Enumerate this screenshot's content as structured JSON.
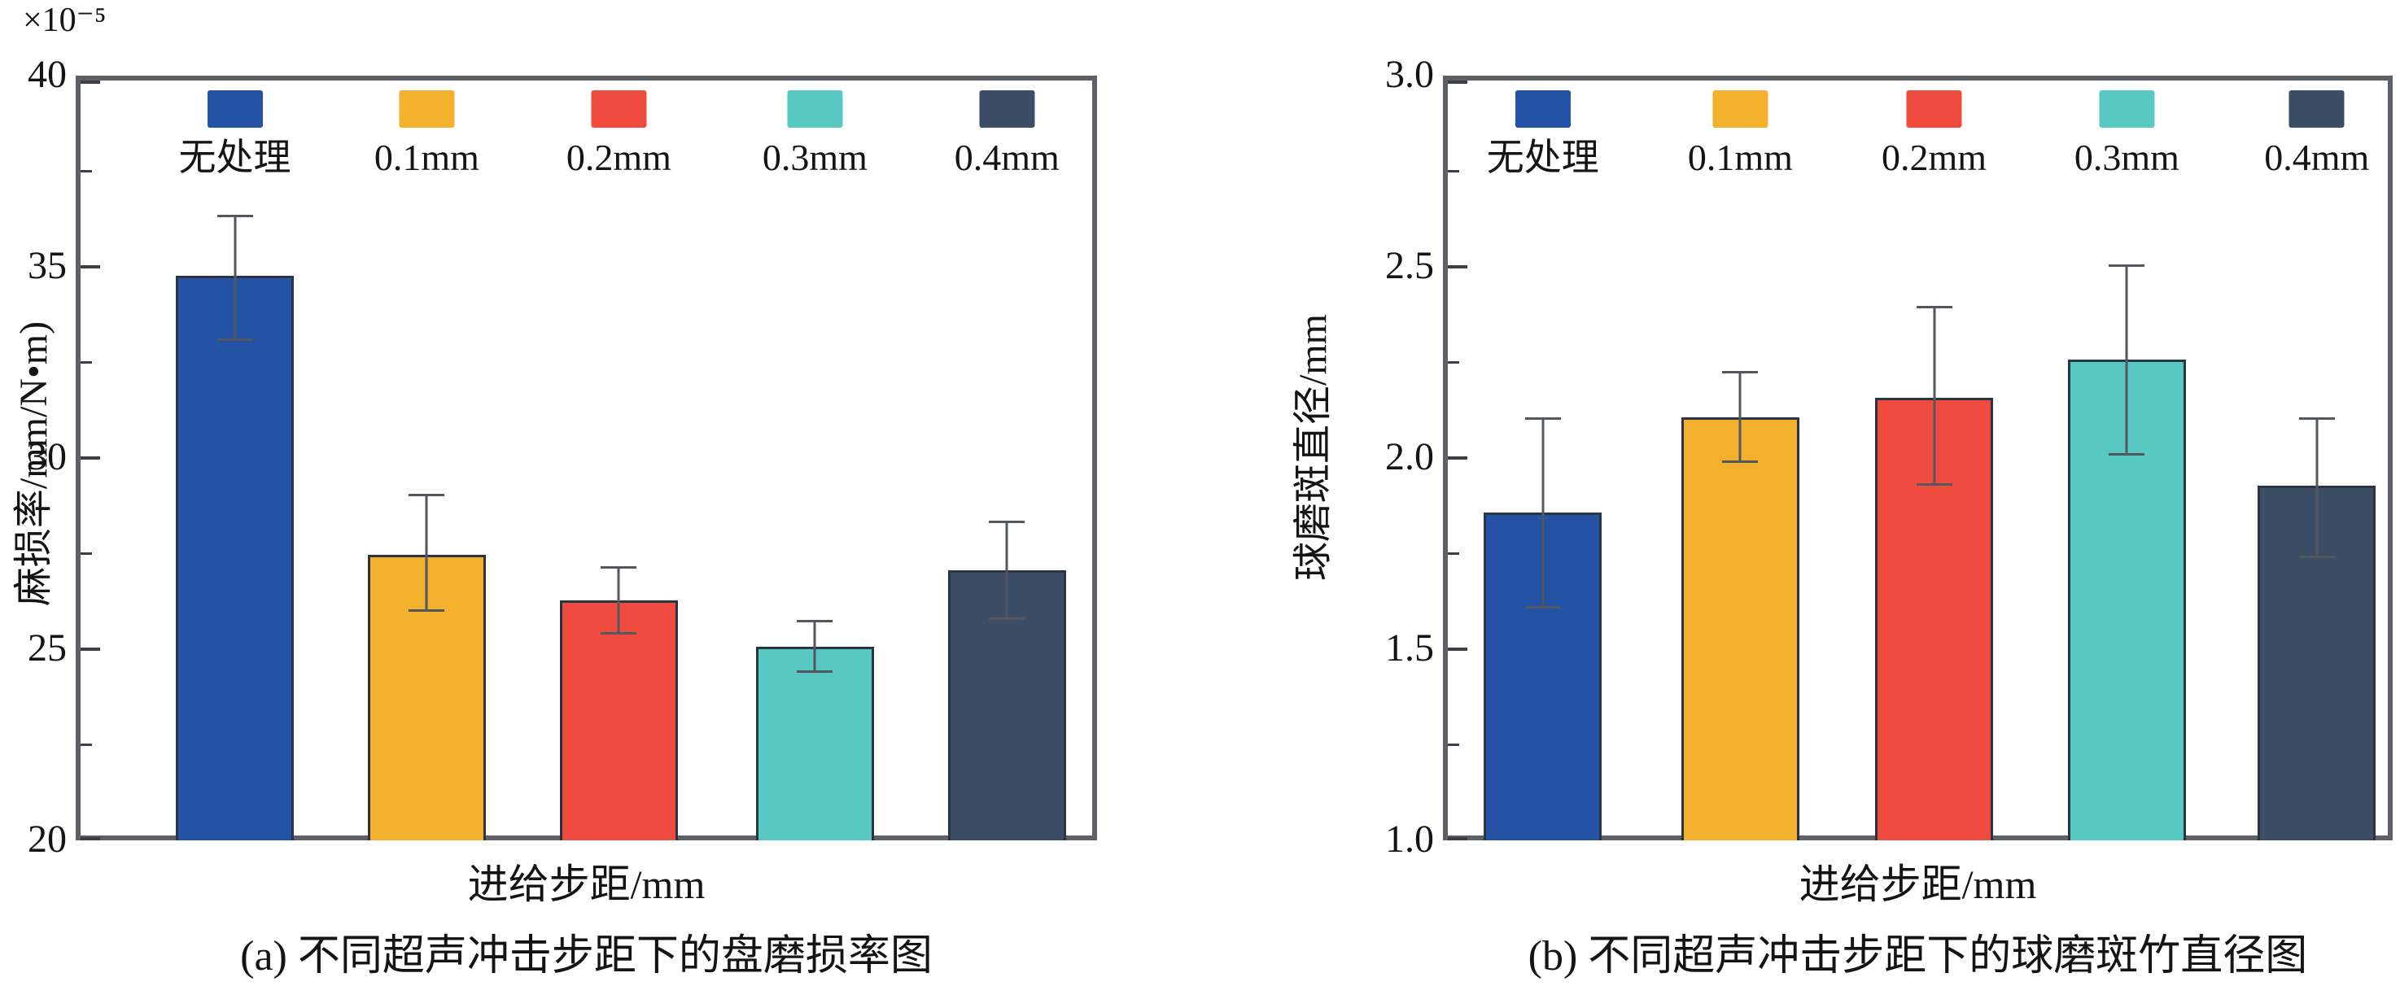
{
  "figure": {
    "background": "#ffffff",
    "frame_color": "#5d6066",
    "error_bar_color": "#53575e",
    "bar_outline_color": "#2b3442"
  },
  "legend": {
    "items": [
      {
        "label": "无处理",
        "color": "#2452a5"
      },
      {
        "label": "0.1mm",
        "color": "#f2b02d"
      },
      {
        "label": "0.2mm",
        "color": "#ef4c3f"
      },
      {
        "label": "0.3mm",
        "color": "#58c9c2"
      },
      {
        "label": "0.4mm",
        "color": "#3c4d66"
      }
    ]
  },
  "chart_data": [
    {
      "type": "bar",
      "caption": "(a) 不同超声冲击步距下的盘磨损率图",
      "xlabel": "进给步距/mm",
      "ylabel": "麻损率/mm/N•m)",
      "scale_note": "×10⁻⁵",
      "categories": [
        "无处理",
        "0.1mm",
        "0.2mm",
        "0.3mm",
        "0.4mm"
      ],
      "values": [
        34.9,
        27.6,
        26.4,
        25.2,
        27.2
      ],
      "error_low": [
        33.2,
        26.1,
        25.5,
        24.5,
        25.9
      ],
      "error_high": [
        36.5,
        29.2,
        27.3,
        25.9,
        28.5
      ],
      "bar_colors": [
        "#2452a5",
        "#f2b02d",
        "#ef4c3f",
        "#58c9c2",
        "#3c4d66"
      ],
      "ylim": [
        20,
        40
      ],
      "yticks": [
        20,
        25,
        30,
        35,
        40
      ],
      "ytick_labels": [
        "20",
        "25",
        "30",
        "35",
        "40"
      ],
      "yminor": [
        22.5,
        27.5,
        32.5,
        37.5
      ],
      "grid": false,
      "legend_position": "top-inside"
    },
    {
      "type": "bar",
      "caption": "(b) 不同超声冲击步距下的球磨斑竹直径图",
      "xlabel": "进给步距/mm",
      "ylabel": "球磨斑直径/mm",
      "scale_note": "",
      "categories": [
        "无处理",
        "0.1mm",
        "0.2mm",
        "0.3mm",
        "0.4mm"
      ],
      "values": [
        1.87,
        2.12,
        2.17,
        2.27,
        1.94
      ],
      "error_low": [
        1.62,
        2.0,
        1.94,
        2.02,
        1.75
      ],
      "error_high": [
        2.12,
        2.24,
        2.41,
        2.52,
        2.12
      ],
      "bar_colors": [
        "#2452a5",
        "#f2b02d",
        "#ef4c3f",
        "#58c9c2",
        "#3c4d66"
      ],
      "ylim": [
        1.0,
        3.0
      ],
      "yticks": [
        1.0,
        1.5,
        2.0,
        2.5,
        3.0
      ],
      "ytick_labels": [
        "1.0",
        "1.5",
        "2.0",
        "2.5",
        "3.0"
      ],
      "yminor": [
        1.25,
        1.75,
        2.25,
        2.75
      ],
      "grid": false,
      "legend_position": "top-inside"
    }
  ]
}
